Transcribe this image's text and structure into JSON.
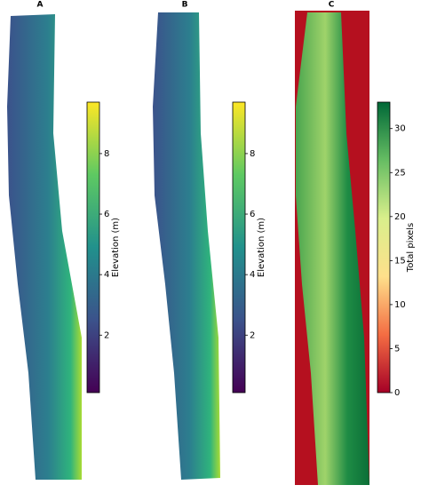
{
  "panels": [
    {
      "title": "A",
      "colorbar": {
        "label": "Elevation (m)",
        "lim": [
          0.1,
          9.7
        ],
        "ticks": [
          2,
          4,
          6,
          8
        ]
      }
    },
    {
      "title": "B",
      "colorbar": {
        "label": "Elevation (m)",
        "lim": [
          0.1,
          9.7
        ],
        "ticks": [
          2,
          4,
          6,
          8
        ]
      }
    },
    {
      "title": "C",
      "colorbar": {
        "label": "Total pixels",
        "lim": [
          0,
          33
        ],
        "ticks": [
          0,
          5,
          10,
          15,
          20,
          25,
          30
        ]
      }
    }
  ]
}
